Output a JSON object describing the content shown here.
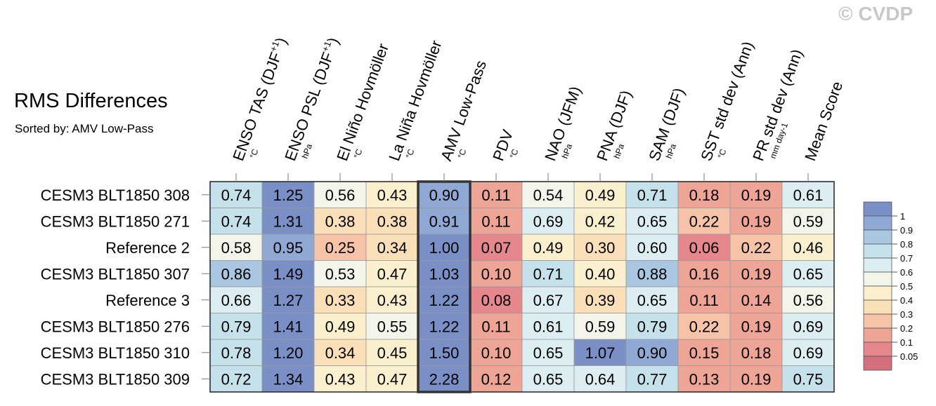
{
  "title": "RMS Differences",
  "subtitle": "Sorted by: AMV Low-Pass",
  "watermark": "© CVDP",
  "chart_data": {
    "type": "heatmap",
    "columns": [
      {
        "label": "ENSO TAS (DJF+1)",
        "label_main": "ENSO TAS (DJF",
        "label_sup": "+1",
        "label_end": ")",
        "unit": "°C"
      },
      {
        "label": "ENSO PSL (DJF+1)",
        "label_main": "ENSO PSL (DJF",
        "label_sup": "+1",
        "label_end": ")",
        "unit": "hPa"
      },
      {
        "label": "El Niño Hovmöller",
        "label_main": "El Niño Hovmöller",
        "label_sup": "",
        "label_end": "",
        "unit": "°C"
      },
      {
        "label": "La Niña Hovmöller",
        "label_main": "La Niña Hovmöller",
        "label_sup": "",
        "label_end": "",
        "unit": "°C"
      },
      {
        "label": "AMV Low-Pass",
        "label_main": "AMV Low-Pass",
        "label_sup": "",
        "label_end": "",
        "unit": "°C"
      },
      {
        "label": "PDV",
        "label_main": "PDV",
        "label_sup": "",
        "label_end": "",
        "unit": "°C"
      },
      {
        "label": "NAO (JFM)",
        "label_main": "NAO (JFM)",
        "label_sup": "",
        "label_end": "",
        "unit": "hPa"
      },
      {
        "label": "PNA (DJF)",
        "label_main": "PNA (DJF)",
        "label_sup": "",
        "label_end": "",
        "unit": "hPa"
      },
      {
        "label": "SAM (DJF)",
        "label_main": "SAM (DJF)",
        "label_sup": "",
        "label_end": "",
        "unit": "hPa"
      },
      {
        "label": "SST std dev (Ann)",
        "label_main": "SST std dev (Ann)",
        "label_sup": "",
        "label_end": "",
        "unit": "°C"
      },
      {
        "label": "PR std dev (Ann)",
        "label_main": "PR std dev (Ann)",
        "label_sup": "",
        "label_end": "",
        "unit": "mm day-1"
      },
      {
        "label": "Mean Score",
        "label_main": "Mean Score",
        "label_sup": "",
        "label_end": "",
        "unit": ""
      }
    ],
    "rows": [
      {
        "label": "CESM3 BLT1850 308",
        "values": [
          0.74,
          1.25,
          0.56,
          0.43,
          0.9,
          0.11,
          0.54,
          0.49,
          0.71,
          0.18,
          0.19,
          0.61
        ]
      },
      {
        "label": "CESM3 BLT1850 271",
        "values": [
          0.74,
          1.31,
          0.38,
          0.38,
          0.91,
          0.11,
          0.69,
          0.42,
          0.65,
          0.22,
          0.19,
          0.59
        ]
      },
      {
        "label": "Reference 2",
        "values": [
          0.58,
          0.95,
          0.25,
          0.34,
          1.0,
          0.07,
          0.49,
          0.3,
          0.6,
          0.06,
          0.22,
          0.46
        ]
      },
      {
        "label": "CESM3 BLT1850 307",
        "values": [
          0.86,
          1.49,
          0.53,
          0.47,
          1.03,
          0.1,
          0.71,
          0.4,
          0.88,
          0.16,
          0.19,
          0.65
        ]
      },
      {
        "label": "Reference 3",
        "values": [
          0.66,
          1.27,
          0.33,
          0.43,
          1.22,
          0.08,
          0.67,
          0.39,
          0.65,
          0.11,
          0.14,
          0.56
        ]
      },
      {
        "label": "CESM3 BLT1850 276",
        "values": [
          0.79,
          1.41,
          0.49,
          0.55,
          1.22,
          0.11,
          0.61,
          0.59,
          0.79,
          0.22,
          0.19,
          0.69
        ]
      },
      {
        "label": "CESM3 BLT1850 310",
        "values": [
          0.78,
          1.2,
          0.34,
          0.45,
          1.5,
          0.1,
          0.65,
          1.07,
          0.9,
          0.15,
          0.18,
          0.69
        ]
      },
      {
        "label": "CESM3 BLT1850 309",
        "values": [
          0.72,
          1.34,
          0.43,
          0.47,
          2.28,
          0.12,
          0.65,
          0.64,
          0.77,
          0.13,
          0.19,
          0.75
        ]
      }
    ],
    "sorted_column": "AMV Low-Pass",
    "colorbar": {
      "levels": [
        0.05,
        0.1,
        0.2,
        0.3,
        0.4,
        0.5,
        0.6,
        0.7,
        0.8,
        0.9,
        1
      ],
      "tick_labels": [
        "1",
        "0.9",
        "0.8",
        "0.7",
        "0.6",
        "0.5",
        "0.4",
        "0.3",
        "0.2",
        "0.1",
        "0.05"
      ],
      "colors": [
        "#d4707e",
        "#e5878c",
        "#efa596",
        "#f6c3a8",
        "#fbdfb8",
        "#faf0cd",
        "#f3f5ea",
        "#ddeef3",
        "#c5e1ec",
        "#a9c7e0",
        "#8fa8d4",
        "#7b8fc7"
      ]
    }
  }
}
